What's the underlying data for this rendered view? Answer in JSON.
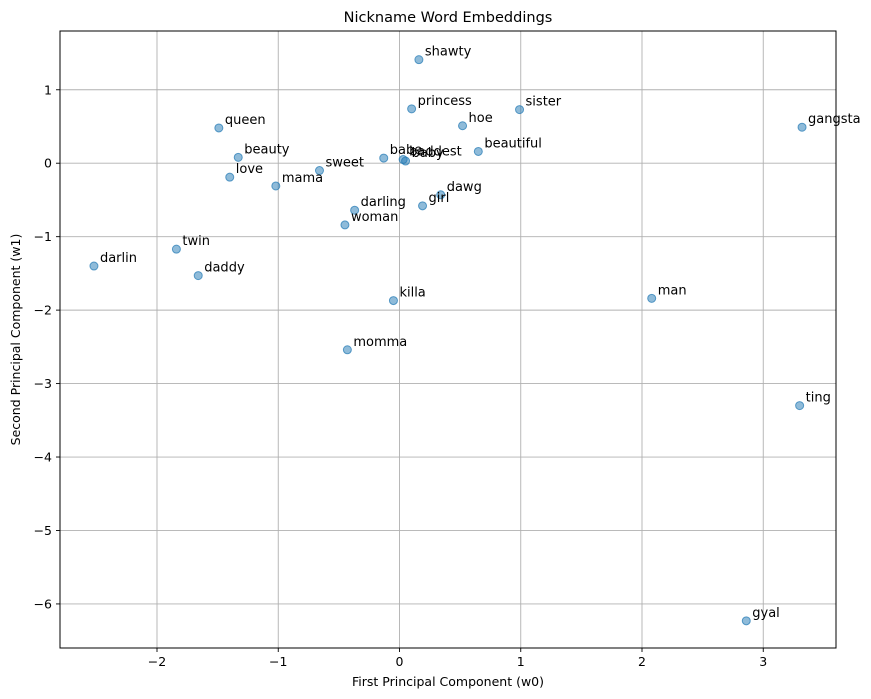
{
  "chart_data": {
    "type": "scatter",
    "title": "Nickname Word Embeddings",
    "xlabel": "First Principal Component (w0)",
    "ylabel": "Second Principal Component (w1)",
    "xlim": [
      -2.8,
      3.6
    ],
    "ylim": [
      -6.6,
      1.8
    ],
    "xticks": [
      -2,
      -1,
      0,
      1,
      2,
      3
    ],
    "yticks": [
      1,
      0,
      -1,
      -2,
      -3,
      -4,
      -5,
      -6
    ],
    "tick_labels": {
      "x": [
        "−2",
        "−1",
        "0",
        "1",
        "2",
        "3"
      ],
      "y": [
        "1",
        "0",
        "−1",
        "−2",
        "−3",
        "−4",
        "−5",
        "−6"
      ]
    },
    "grid": true,
    "color": "#1f77b4",
    "points": [
      {
        "label": "shawty",
        "x": 0.16,
        "y": 1.41
      },
      {
        "label": "princess",
        "x": 0.1,
        "y": 0.74
      },
      {
        "label": "sister",
        "x": 0.99,
        "y": 0.73
      },
      {
        "label": "hoe",
        "x": 0.52,
        "y": 0.51
      },
      {
        "label": "gangsta",
        "x": 3.32,
        "y": 0.49
      },
      {
        "label": "queen",
        "x": -1.49,
        "y": 0.48
      },
      {
        "label": "beautiful",
        "x": 0.65,
        "y": 0.16
      },
      {
        "label": "beauty",
        "x": -1.33,
        "y": 0.08
      },
      {
        "label": "babe",
        "x": -0.13,
        "y": 0.07
      },
      {
        "label": "baddest",
        "x": 0.03,
        "y": 0.05
      },
      {
        "label": "baby",
        "x": 0.05,
        "y": 0.03
      },
      {
        "label": "sweet",
        "x": -0.66,
        "y": -0.1
      },
      {
        "label": "love",
        "x": -1.4,
        "y": -0.19
      },
      {
        "label": "mama",
        "x": -1.02,
        "y": -0.31
      },
      {
        "label": "dawg",
        "x": 0.34,
        "y": -0.43
      },
      {
        "label": "girl",
        "x": 0.19,
        "y": -0.58
      },
      {
        "label": "darling",
        "x": -0.37,
        "y": -0.64
      },
      {
        "label": "woman",
        "x": -0.45,
        "y": -0.84
      },
      {
        "label": "twin",
        "x": -1.84,
        "y": -1.17
      },
      {
        "label": "darlin",
        "x": -2.52,
        "y": -1.4
      },
      {
        "label": "daddy",
        "x": -1.66,
        "y": -1.53
      },
      {
        "label": "man",
        "x": 2.08,
        "y": -1.84
      },
      {
        "label": "killa",
        "x": -0.05,
        "y": -1.87
      },
      {
        "label": "momma",
        "x": -0.43,
        "y": -2.54
      },
      {
        "label": "ting",
        "x": 3.3,
        "y": -3.3
      },
      {
        "label": "gyal",
        "x": 2.86,
        "y": -6.23
      }
    ]
  }
}
